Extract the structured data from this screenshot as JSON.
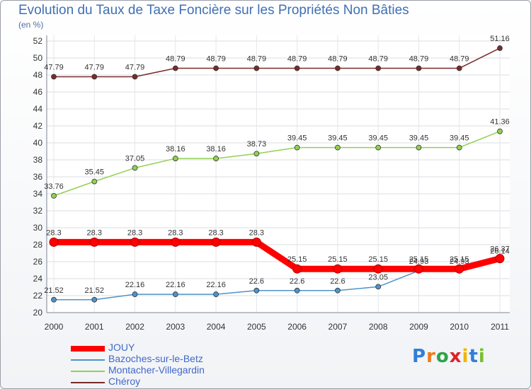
{
  "chart_data": {
    "type": "line",
    "title": "Evolution du Taux de Taxe Foncière sur les Propriétés Non Bâties",
    "ylabel": "(en %)",
    "xlabel": "",
    "categories": [
      "2000",
      "2001",
      "2002",
      "2003",
      "2004",
      "2005",
      "2006",
      "2007",
      "2008",
      "2009",
      "2010",
      "2011"
    ],
    "ylim": [
      20,
      52
    ],
    "yticks": [
      "20",
      "22",
      "24",
      "26",
      "28",
      "30",
      "32",
      "34",
      "36",
      "38",
      "40",
      "42",
      "44",
      "46",
      "48",
      "50",
      "52"
    ],
    "series": [
      {
        "name": "JOUY",
        "color": "#ff0000",
        "values": [
          28.3,
          28.3,
          28.3,
          28.3,
          28.3,
          28.3,
          25.15,
          25.15,
          25.15,
          25.15,
          25.15,
          26.37
        ],
        "labels": [
          "28.3",
          "28.3",
          "28.3",
          "28.3",
          "28.3",
          "28.3",
          "25.15",
          "25.15",
          "25.15",
          "25.15",
          "25.15",
          "26.37"
        ]
      },
      {
        "name": "Bazoches-sur-le-Betz",
        "color": "#4f93c8",
        "values": [
          21.52,
          21.52,
          22.16,
          22.16,
          22.16,
          22.6,
          22.6,
          22.6,
          23.05,
          24.93,
          24.93,
          26.14
        ],
        "labels": [
          "21.52",
          "21.52",
          "22.16",
          "22.16",
          "22.16",
          "22.6",
          "22.6",
          "22.6",
          "23.05",
          "24.93",
          "24.93",
          "26.14"
        ]
      },
      {
        "name": "Montacher-Villegardin",
        "color": "#92d050",
        "values": [
          33.76,
          35.45,
          37.05,
          38.16,
          38.16,
          38.73,
          39.45,
          39.45,
          39.45,
          39.45,
          39.45,
          41.36
        ],
        "labels": [
          "33.76",
          "35.45",
          "37.05",
          "38.16",
          "38.16",
          "38.73",
          "39.45",
          "39.45",
          "39.45",
          "39.45",
          "39.45",
          "41.36"
        ]
      },
      {
        "name": "Chéroy",
        "color": "#7a2a2a",
        "values": [
          47.79,
          47.79,
          47.79,
          48.79,
          48.79,
          48.79,
          48.79,
          48.79,
          48.79,
          48.79,
          48.79,
          51.16
        ],
        "labels": [
          "47.79",
          "47.79",
          "47.79",
          "48.79",
          "48.79",
          "48.79",
          "48.79",
          "48.79",
          "48.79",
          "48.79",
          "48.79",
          "51.16"
        ]
      }
    ]
  },
  "legend": {
    "items": [
      {
        "label": "JOUY",
        "color": "#ff0000"
      },
      {
        "label": "Bazoches-sur-le-Betz",
        "color": "#4f93c8"
      },
      {
        "label": "Montacher-Villegardin",
        "color": "#92d050"
      },
      {
        "label": "Chéroy",
        "color": "#7a2a2a"
      }
    ]
  },
  "logo": {
    "letters": [
      "P",
      "r",
      "o",
      "x",
      "i",
      "t",
      "i"
    ],
    "colors": [
      "#2f7fd8",
      "#f07a1a",
      "#2fa24b",
      "#e02222",
      "#f0b400",
      "#2f7fd8",
      "#7abf2f"
    ]
  }
}
